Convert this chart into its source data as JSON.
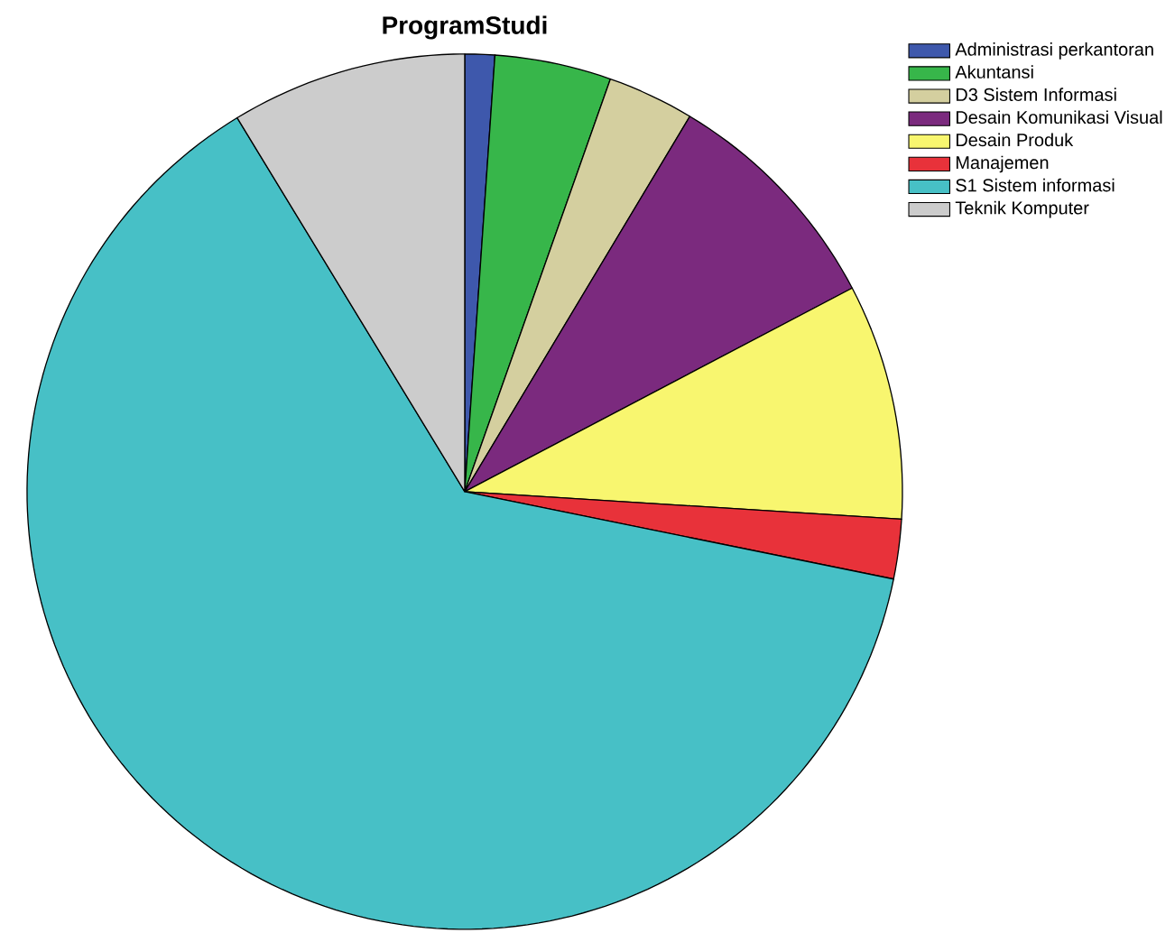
{
  "chart_data": {
    "type": "pie",
    "title": "ProgramStudi",
    "categories": [
      "Administrasi perkantoran",
      "Akuntansi",
      "D3 Sistem Informasi",
      "Desain Komunikasi Visual",
      "Desain Produk",
      "Manajemen",
      "S1 Sistem informasi",
      "Teknik Komputer"
    ],
    "values": [
      1.1,
      4.3,
      3.2,
      8.7,
      8.7,
      2.2,
      63.1,
      8.7
    ],
    "colors": [
      "#3e58ac",
      "#37b64a",
      "#d4cf9f",
      "#7b2a7e",
      "#f8f66f",
      "#e8323a",
      "#47c0c6",
      "#cccccc"
    ],
    "legend": "top right"
  }
}
